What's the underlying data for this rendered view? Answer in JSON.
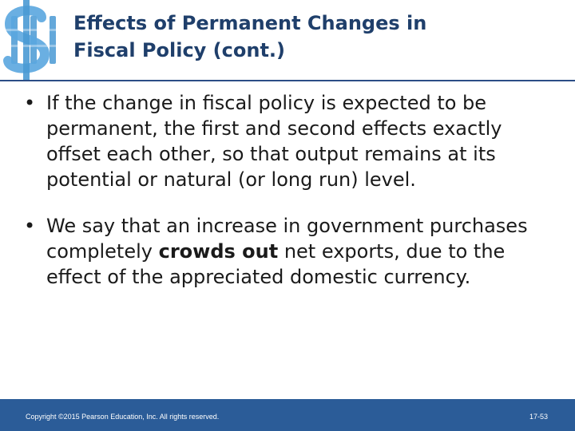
{
  "header": {
    "logo_icon": "dollar-sign-icon",
    "title_line1": "Effects of Permanent Changes in",
    "title_line2": "Fiscal Policy (cont.)"
  },
  "bullets": [
    {
      "text": "If the change in fiscal policy is expected to be permanent, the first and second effects exactly offset each other, so that output remains at its potential or natural (or long run) level."
    },
    {
      "text_before": "We say that an increase in government purchases completely ",
      "bold": "crowds out",
      "text_after": " net exports, due to the effect of the appreciated domestic currency."
    }
  ],
  "bullet_symbol": "•",
  "footer": {
    "copyright": "Copyright ©2015 Pearson Education, Inc. All rights reserved.",
    "page": "17-53"
  },
  "colors": {
    "title": "#1f3f6b",
    "logo": "#4a9ad4",
    "footer_bg": "#2b5c98"
  }
}
